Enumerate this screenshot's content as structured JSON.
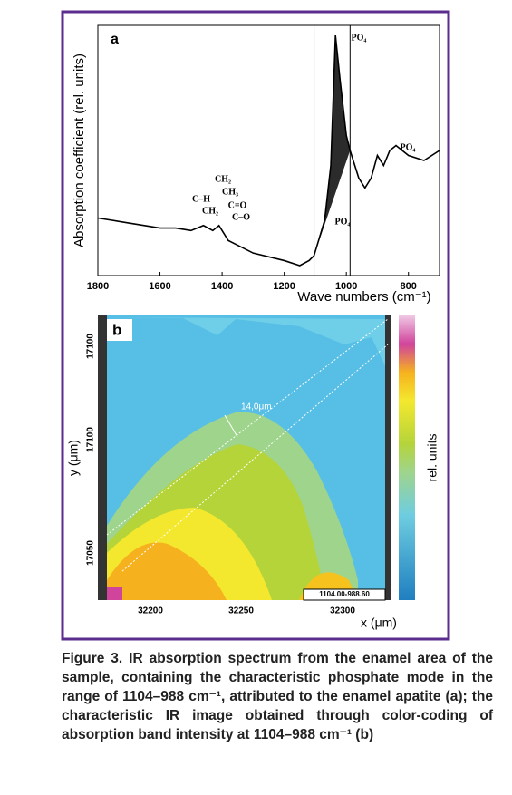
{
  "chart_data": {
    "type": "line",
    "panel_label": "a",
    "y_label": "Absorption coefficient (rel. units)",
    "x_label": "Wave numbers (cm⁻¹)",
    "xlim": [
      1800,
      700
    ],
    "xticks": [
      1800,
      1600,
      1400,
      1200,
      1000,
      800
    ],
    "ylim": [
      0,
      100
    ],
    "color": "#000000",
    "fill_color": "#2b2b2b",
    "vlines": [
      1104,
      988
    ],
    "x": [
      1800,
      1700,
      1600,
      1550,
      1500,
      1460,
      1430,
      1410,
      1380,
      1300,
      1200,
      1150,
      1120,
      1104,
      1070,
      1050,
      1035,
      1020,
      1000,
      988,
      960,
      940,
      920,
      900,
      880,
      860,
      840,
      800,
      750,
      700
    ],
    "values": [
      23,
      21,
      19,
      19,
      18,
      20,
      18,
      20,
      14,
      9,
      6,
      4,
      6,
      8,
      22,
      44,
      96,
      78,
      56,
      50,
      39,
      35,
      39,
      48,
      44,
      50,
      52,
      48,
      46,
      50
    ],
    "annotations": [
      "CH₂",
      "C–H",
      "CH₃",
      "CH₂",
      "C=O",
      "C–O",
      "PO₄",
      "PO₄",
      "PO₄"
    ]
  },
  "panel_b": {
    "panel_label": "b",
    "y_label": "y (μm)",
    "x_label": "x (μm)",
    "colorbar_label": "rel. units",
    "y_tick_labels": [
      "17100",
      "17100",
      "17050"
    ],
    "x_tick_labels": [
      "32200",
      "32250",
      "32300"
    ],
    "scale_label": "14,0μm",
    "range_label": "1104.00-988.60"
  },
  "caption": "Figure 3. IR absorption spectrum from the enamel area of the sample, containing the characteristic phosphate mode in the range of  1104–988 cm⁻¹, attributed to the enamel apatite (a); the characteristic IR image obtained through color-coding of absorption band intensity at 1104–988 cm⁻¹ (b)"
}
